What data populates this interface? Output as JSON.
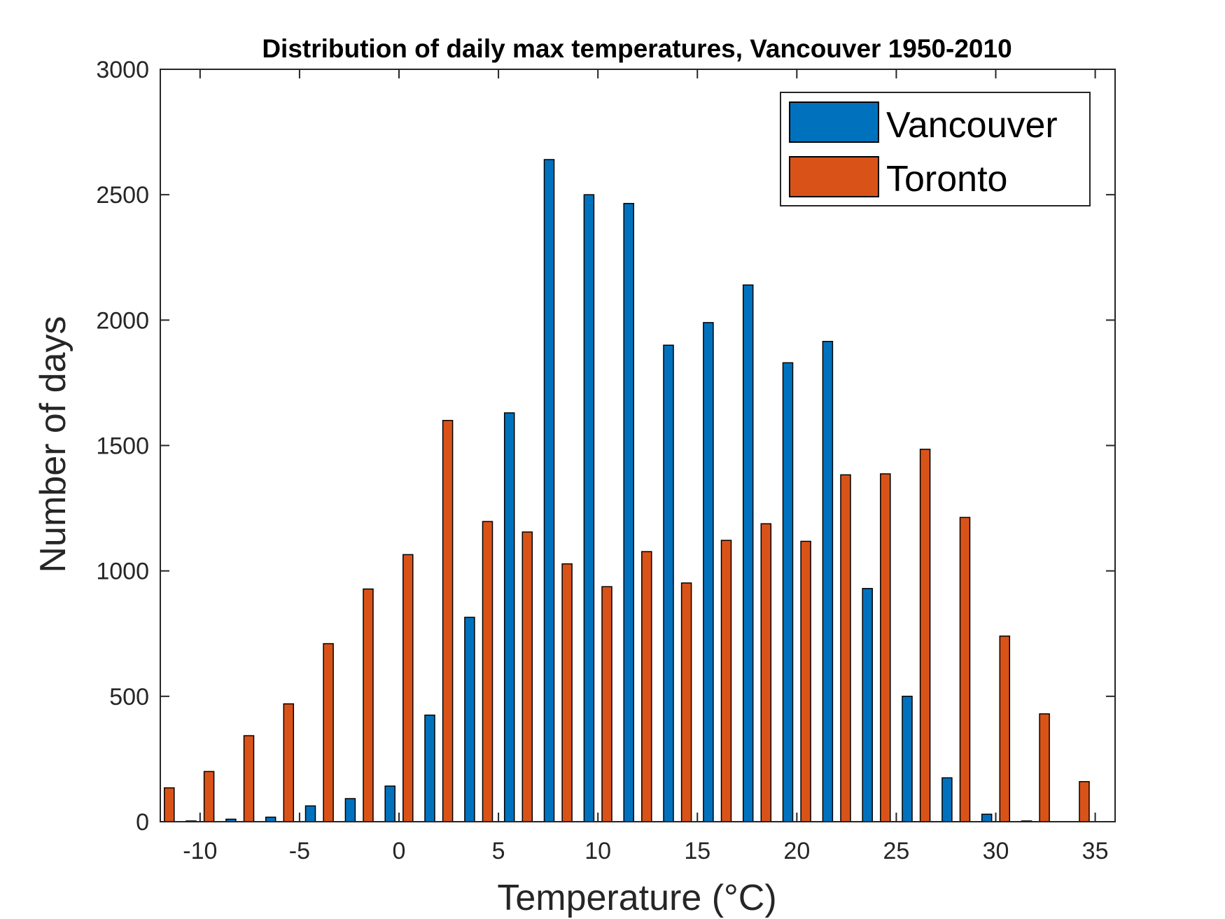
{
  "chart_data": {
    "type": "bar",
    "title": "Distribution of daily max temperatures, Vancouver 1950-2010",
    "xlabel": "Temperature (°C)",
    "ylabel": "Number of days",
    "xlim": [
      -12,
      36
    ],
    "ylim": [
      0,
      3000
    ],
    "xticks": [
      -10,
      -5,
      0,
      5,
      10,
      15,
      20,
      25,
      30,
      35
    ],
    "yticks": [
      0,
      500,
      1000,
      1500,
      2000,
      2500,
      3000
    ],
    "legend_position": "top-right",
    "grid": false,
    "x": [
      -12,
      -10,
      -8,
      -6,
      -4,
      -2,
      0,
      2,
      4,
      6,
      8,
      10,
      12,
      14,
      16,
      18,
      20,
      22,
      24,
      26,
      28,
      30,
      32,
      34
    ],
    "series": [
      {
        "name": "Vancouver",
        "color": "#0072BD",
        "values": [
          0,
          3,
          10,
          18,
          63,
          92,
          142,
          425,
          815,
          1630,
          2640,
          2500,
          2465,
          1900,
          1990,
          2140,
          1830,
          1915,
          930,
          500,
          175,
          30,
          3,
          0
        ]
      },
      {
        "name": "Toronto",
        "color": "#D95319",
        "values": [
          135,
          200,
          343,
          470,
          710,
          928,
          1065,
          1600,
          1197,
          1155,
          1028,
          937,
          1077,
          952,
          1122,
          1188,
          1118,
          1383,
          1387,
          1485,
          1213,
          740,
          430,
          160
        ]
      }
    ]
  }
}
